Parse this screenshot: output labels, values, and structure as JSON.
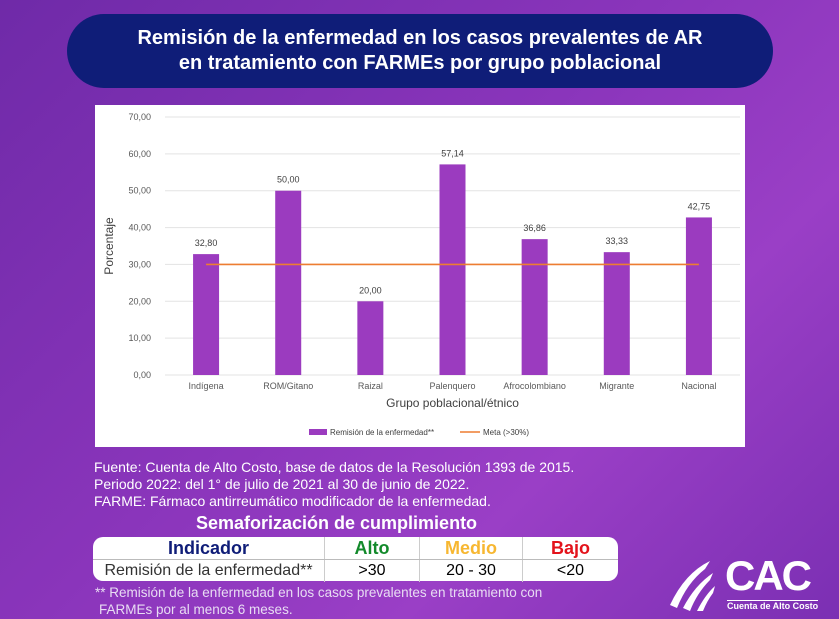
{
  "header": {
    "title_line1": "Remisión de la enfermedad en los casos prevalentes de AR",
    "title_line2": "en tratamiento con FARMEs por grupo poblacional"
  },
  "chart_data": {
    "type": "bar",
    "categories": [
      "Indígena",
      "ROM/Gitano",
      "Raizal",
      "Palenquero",
      "Afrocolombiano",
      "Migrante",
      "Nacional"
    ],
    "series": [
      {
        "name": "Remisión de la enfermedad**",
        "type": "bar",
        "values": [
          32.8,
          50.0,
          20.0,
          57.14,
          36.86,
          33.33,
          42.75
        ],
        "labels": [
          "32,80",
          "50,00",
          "20,00",
          "57,14",
          "36,86",
          "33,33",
          "42,75"
        ],
        "color": "#9b3bbf"
      },
      {
        "name": "Meta (>30%)",
        "type": "line",
        "values": [
          30,
          30,
          30,
          30,
          30,
          30,
          30
        ],
        "color": "#ed7d31"
      }
    ],
    "xlabel": "Grupo poblacional/étnico",
    "ylabel": "Porcentaje",
    "ylim": [
      0,
      70
    ],
    "yticks": [
      "0,00",
      "10,00",
      "20,00",
      "30,00",
      "40,00",
      "50,00",
      "60,00",
      "70,00"
    ],
    "grid": true,
    "legend": "bottom"
  },
  "notes": [
    "Fuente: Cuenta de Alto Costo, base de datos de la Resolución 1393 de 2015.",
    "Periodo 2022: del 1° de julio de 2021 al 30 de junio de 2022.",
    "FARME: Fármaco antirreumático modificador de la enfermedad."
  ],
  "semaforo": {
    "title": "Semaforización de cumplimiento",
    "headers": [
      "Indicador",
      "Alto",
      "Medio",
      "Bajo"
    ],
    "header_colors": [
      "#0f1d78",
      "#138a2b",
      "#f7b731",
      "#e3131b"
    ],
    "row": [
      "Remisión de la enfermedad**",
      ">30",
      "20 - 30",
      "<20"
    ]
  },
  "footnote": [
    "** Remisión de la enfermedad en los casos prevalentes en tratamiento con",
    "FARMEs por al menos 6 meses."
  ],
  "logo": {
    "text": "CAC",
    "subtitle": "Cuenta de Alto Costo"
  }
}
